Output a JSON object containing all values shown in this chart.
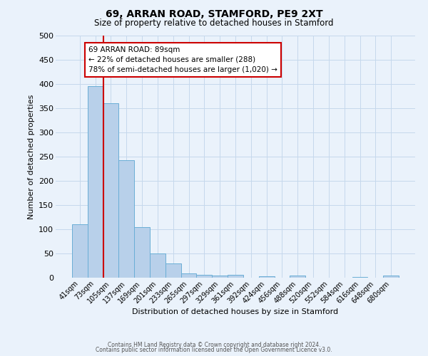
{
  "title": "69, ARRAN ROAD, STAMFORD, PE9 2XT",
  "subtitle": "Size of property relative to detached houses in Stamford",
  "xlabel": "Distribution of detached houses by size in Stamford",
  "ylabel": "Number of detached properties",
  "categories": [
    "41sqm",
    "73sqm",
    "105sqm",
    "137sqm",
    "169sqm",
    "201sqm",
    "233sqm",
    "265sqm",
    "297sqm",
    "329sqm",
    "361sqm",
    "392sqm",
    "424sqm",
    "456sqm",
    "488sqm",
    "520sqm",
    "552sqm",
    "584sqm",
    "616sqm",
    "648sqm",
    "680sqm"
  ],
  "bar_heights": [
    110,
    395,
    360,
    242,
    105,
    50,
    30,
    9,
    6,
    4,
    6,
    0,
    3,
    0,
    4,
    0,
    0,
    0,
    2,
    0,
    4
  ],
  "bar_color": "#b8d0ea",
  "bar_edge_color": "#6aaed6",
  "bar_edge_width": 0.7,
  "grid_color": "#c5d8ec",
  "background_color": "#eaf2fb",
  "red_line_color": "#cc0000",
  "annotation_text": "69 ARRAN ROAD: 89sqm\n← 22% of detached houses are smaller (288)\n78% of semi-detached houses are larger (1,020) →",
  "annotation_box_color": "#ffffff",
  "annotation_box_edge_color": "#cc0000",
  "ylim": [
    0,
    500
  ],
  "yticks": [
    0,
    50,
    100,
    150,
    200,
    250,
    300,
    350,
    400,
    450,
    500
  ],
  "footer_line1": "Contains HM Land Registry data © Crown copyright and database right 2024.",
  "footer_line2": "Contains public sector information licensed under the Open Government Licence v3.0."
}
